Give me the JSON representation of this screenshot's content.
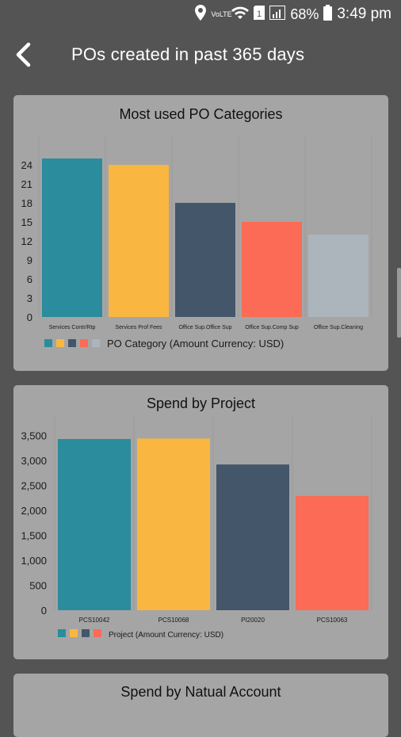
{
  "status": {
    "network_label": "VoLTE",
    "battery_percent": "68%",
    "time": "3:49 pm"
  },
  "header": {
    "title": "POs created in past 365 days"
  },
  "charts": [
    {
      "title": "Most used PO Categories",
      "legend_label": "PO Category (Amount Currency: USD)"
    },
    {
      "title": "Spend by Project",
      "legend_label": "Project (Amount Currency: USD)"
    },
    {
      "title": "Spend by Natual Account"
    }
  ],
  "colors": {
    "teal": "#2A8C9C",
    "yellow": "#F9B640",
    "slate": "#43566A",
    "coral": "#FB6B55",
    "silver": "#ACB5BC"
  },
  "chart_data": [
    {
      "type": "bar",
      "title": "Most used PO Categories",
      "categories": [
        "Services Contr/Rtp",
        "Services Prof Fees",
        "Office Sup.Office Sup",
        "Office Sup.Comp Sup",
        "Office Sup.Cleaning"
      ],
      "values": [
        25,
        24,
        18,
        15,
        13
      ],
      "ylim": [
        0,
        27
      ],
      "yticks": [
        0,
        3,
        6,
        9,
        12,
        15,
        18,
        21,
        24
      ],
      "bar_colors": [
        "#2A8C9C",
        "#F9B640",
        "#43566A",
        "#FB6B55",
        "#ACB5BC"
      ],
      "legend": "PO Category (Amount Currency: USD)"
    },
    {
      "type": "bar",
      "title": "Spend by Project",
      "categories": [
        "PCS10042",
        "PCS10068",
        "PI20020",
        "PCS10063"
      ],
      "values": [
        3430,
        3440,
        2920,
        2290
      ],
      "ylim": [
        0,
        3700
      ],
      "yticks": [
        "0",
        "500",
        "1,000",
        "1,500",
        "2,000",
        "2,500",
        "3,000",
        "3,500"
      ],
      "bar_colors": [
        "#2A8C9C",
        "#F9B640",
        "#43566A",
        "#FB6B55"
      ],
      "legend": "Project (Amount Currency: USD)"
    }
  ]
}
